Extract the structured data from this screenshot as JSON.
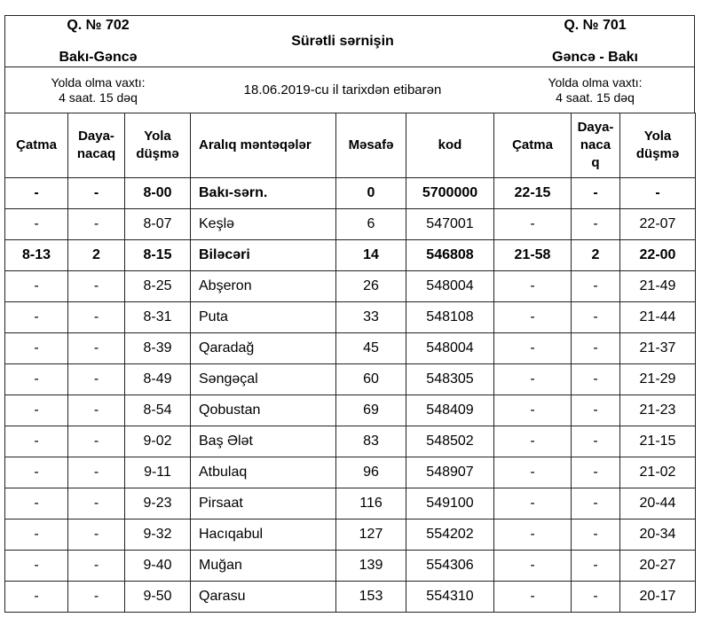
{
  "header": {
    "left_train": "Q. № 702",
    "left_route": "Bakı-Gəncə",
    "title": "Sürətli sərnişin",
    "right_train": "Q. № 701",
    "right_route": "Gəncə - Bakı",
    "left_travel_label": "Yolda olma vaxtı:",
    "left_travel_time": "4 saat. 15 dəq",
    "effective_date": "18.06.2019-cu il tarixdən etibarən",
    "right_travel_label": "Yolda olma vaxtı:",
    "right_travel_time": "4 saat. 15 dəq"
  },
  "columns": [
    "Çatma",
    "Daya-\nnacaq",
    "Yola\ndüşmə",
    "Aralıq məntəqələr",
    "Məsafə",
    "kod",
    "Çatma",
    "Daya-\nnaca\nq",
    "Yola\ndüşmə"
  ],
  "rows": [
    {
      "bold": true,
      "cells": [
        "-",
        "-",
        "8-00",
        "Bakı-sərn.",
        "0",
        "5700000",
        "22-15",
        "-",
        "-"
      ]
    },
    {
      "bold": false,
      "cells": [
        "-",
        "-",
        "8-07",
        "Keşlə",
        "6",
        "547001",
        "-",
        "-",
        "22-07"
      ]
    },
    {
      "bold": true,
      "cells": [
        "8-13",
        "2",
        "8-15",
        "Biləcəri",
        "14",
        "546808",
        "21-58",
        "2",
        "22-00"
      ]
    },
    {
      "bold": false,
      "cells": [
        "-",
        "-",
        "8-25",
        "Abşeron",
        "26",
        "548004",
        "-",
        "-",
        "21-49"
      ]
    },
    {
      "bold": false,
      "cells": [
        "-",
        "-",
        "8-31",
        "Puta",
        "33",
        "548108",
        "-",
        "-",
        "21-44"
      ]
    },
    {
      "bold": false,
      "cells": [
        "-",
        "-",
        "8-39",
        "Qaradağ",
        "45",
        "548004",
        "-",
        "-",
        "21-37"
      ]
    },
    {
      "bold": false,
      "cells": [
        "-",
        "-",
        "8-49",
        "Səngəçal",
        "60",
        "548305",
        "-",
        "-",
        "21-29"
      ]
    },
    {
      "bold": false,
      "cells": [
        "-",
        "-",
        "8-54",
        "Qobustan",
        "69",
        "548409",
        "-",
        "-",
        "21-23"
      ]
    },
    {
      "bold": false,
      "cells": [
        "-",
        "-",
        "9-02",
        "Baş Ələt",
        "83",
        "548502",
        "-",
        "-",
        "21-15"
      ]
    },
    {
      "bold": false,
      "cells": [
        "-",
        "-",
        "9-11",
        "Atbulaq",
        "96",
        "548907",
        "-",
        "-",
        "21-02"
      ]
    },
    {
      "bold": false,
      "cells": [
        "-",
        "-",
        "9-23",
        "Pirsaat",
        "116",
        "549100",
        "-",
        "-",
        "20-44"
      ]
    },
    {
      "bold": false,
      "cells": [
        "-",
        "-",
        "9-32",
        "Hacıqabul",
        "127",
        "554202",
        "-",
        "-",
        "20-34"
      ]
    },
    {
      "bold": false,
      "cells": [
        "-",
        "-",
        "9-40",
        "Muğan",
        "139",
        "554306",
        "-",
        "-",
        "20-27"
      ]
    },
    {
      "bold": false,
      "cells": [
        "-",
        "-",
        "9-50",
        "Qarasu",
        "153",
        "554310",
        "-",
        "-",
        "20-17"
      ]
    }
  ]
}
